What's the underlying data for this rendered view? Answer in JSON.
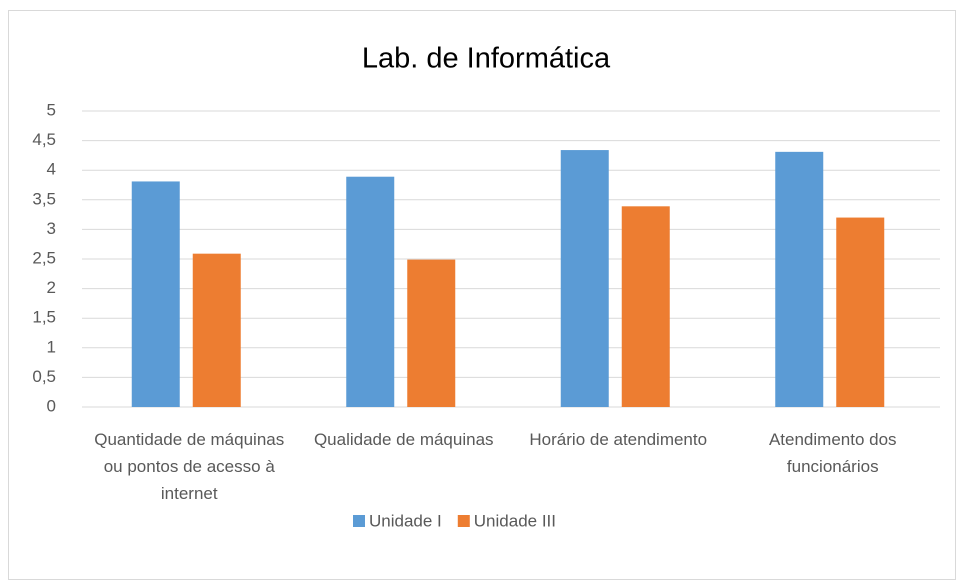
{
  "chart_data": {
    "type": "bar",
    "title": "Lab. de Informática",
    "categories": [
      "Quantidade de máquinas ou pontos de acesso à internet",
      "Qualidade de máquinas",
      "Horário de atendimento",
      "Atendimento dos funcionários"
    ],
    "series": [
      {
        "name": "Unidade I",
        "color": "#5b9bd5",
        "values": [
          3.81,
          3.89,
          4.34,
          4.31
        ]
      },
      {
        "name": "Unidade III",
        "color": "#ed7d31",
        "values": [
          2.59,
          2.49,
          3.39,
          3.2
        ]
      }
    ],
    "ylim": [
      0,
      5
    ],
    "yticks": [
      0,
      {
        "value": 0.5,
        "label": "0,5"
      },
      1,
      {
        "value": 1.5,
        "label": "1,5"
      },
      2,
      {
        "value": 2.5,
        "label": "2,5"
      },
      3,
      {
        "value": 3.5,
        "label": "3,5"
      },
      4,
      {
        "value": 4.5,
        "label": "4,5"
      },
      5
    ],
    "grid": true,
    "legend": "bottom"
  }
}
